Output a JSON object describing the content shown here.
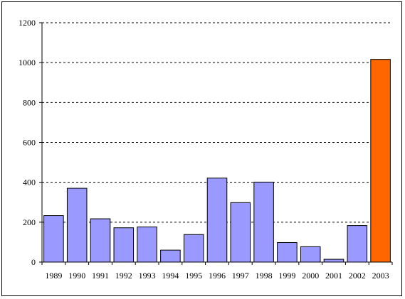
{
  "chart_data": {
    "type": "bar",
    "categories": [
      "1989",
      "1990",
      "1991",
      "1992",
      "1993",
      "1994",
      "1995",
      "1996",
      "1997",
      "1998",
      "1999",
      "2000",
      "2001",
      "2002",
      "2003"
    ],
    "values": [
      233,
      370,
      217,
      172,
      176,
      60,
      138,
      421,
      298,
      401,
      98,
      77,
      14,
      183,
      1016
    ],
    "highlight_index": 14,
    "ylim": [
      0,
      1200
    ],
    "yticks": [
      0,
      200,
      400,
      600,
      800,
      1000,
      1200
    ],
    "ytick_labels": [
      "0",
      "200",
      "400",
      "600",
      "800",
      "1000",
      "1200"
    ],
    "title": "",
    "xlabel": "",
    "ylabel": "",
    "grid": "horizontal dashed",
    "legend": "none",
    "colors": {
      "bar": "#9999FF",
      "highlight": "#FF6600",
      "bar_stroke": "#000000",
      "grid": "#000000",
      "frame": "#000000"
    }
  }
}
